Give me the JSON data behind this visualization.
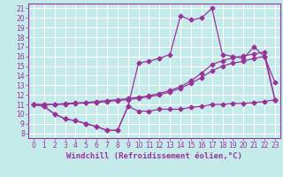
{
  "xlabel": "Windchill (Refroidissement éolien,°C)",
  "xlim": [
    -0.5,
    23.5
  ],
  "ylim": [
    7.5,
    21.5
  ],
  "xticks": [
    0,
    1,
    2,
    3,
    4,
    5,
    6,
    7,
    8,
    9,
    10,
    11,
    12,
    13,
    14,
    15,
    16,
    17,
    18,
    19,
    20,
    21,
    22,
    23
  ],
  "yticks": [
    8,
    9,
    10,
    11,
    12,
    13,
    14,
    15,
    16,
    17,
    18,
    19,
    20,
    21
  ],
  "bg_color": "#c5eaea",
  "line_color": "#993399",
  "grid_color": "#ffffff",
  "line1_y": [
    11.0,
    10.8,
    10.0,
    9.5,
    9.3,
    9.0,
    8.7,
    8.3,
    8.3,
    10.8,
    10.3,
    10.3,
    10.5,
    10.5,
    10.5,
    10.7,
    10.8,
    11.0,
    11.0,
    11.1,
    11.1,
    11.2,
    11.3,
    11.5
  ],
  "line2_y": [
    11.0,
    11.0,
    11.0,
    11.0,
    11.1,
    11.15,
    11.2,
    11.3,
    11.4,
    11.5,
    11.65,
    11.8,
    12.0,
    12.3,
    12.7,
    13.2,
    13.8,
    14.5,
    15.0,
    15.3,
    15.5,
    15.8,
    16.0,
    11.5
  ],
  "line3_y": [
    11.0,
    11.0,
    11.0,
    11.1,
    11.15,
    11.2,
    11.3,
    11.4,
    11.5,
    11.6,
    11.75,
    11.9,
    12.15,
    12.45,
    12.85,
    13.45,
    14.25,
    15.15,
    15.55,
    15.85,
    16.05,
    16.25,
    16.45,
    11.5
  ],
  "line4_y": [
    11.0,
    10.8,
    10.0,
    9.5,
    9.3,
    9.0,
    8.7,
    8.3,
    8.3,
    10.8,
    15.3,
    15.5,
    15.8,
    16.2,
    20.2,
    19.8,
    20.0,
    21.0,
    16.2,
    16.0,
    15.8,
    17.0,
    16.0,
    13.3
  ],
  "marker": "D",
  "markersize": 2.5,
  "linewidth": 0.9,
  "tick_fontsize": 5.5,
  "label_fontsize": 6.5
}
